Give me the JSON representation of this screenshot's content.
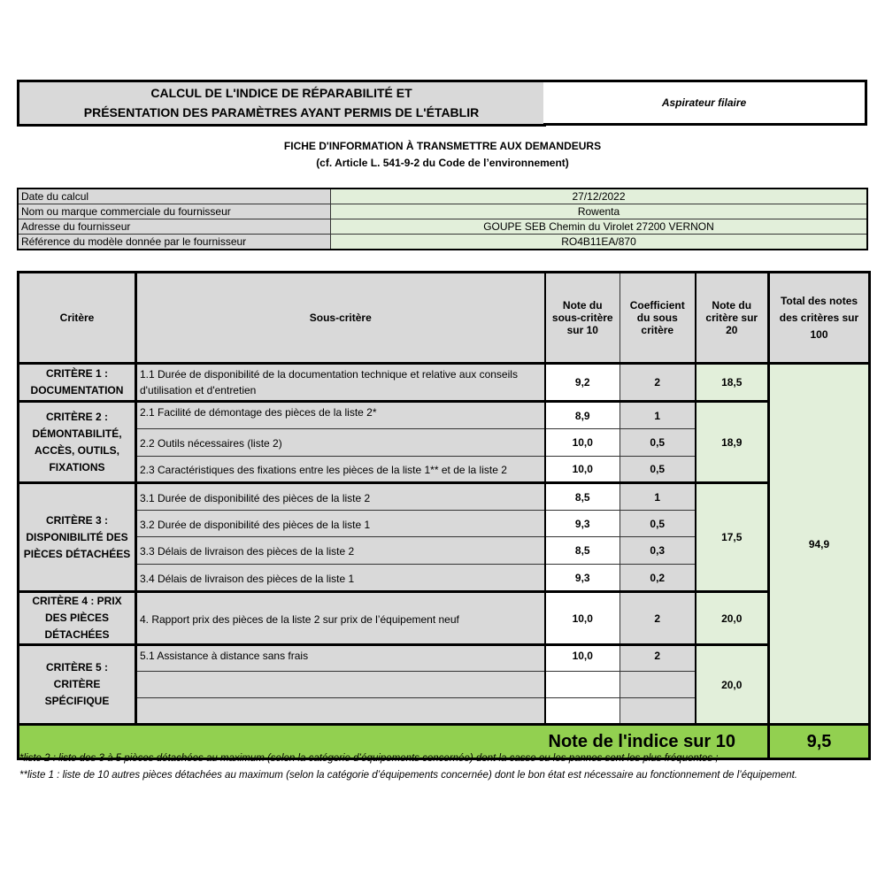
{
  "title": {
    "line1": "CALCUL DE L'INDICE DE RÉPARABILITÉ ET",
    "line2": "PRÉSENTATION DES PARAMÈTRES AYANT PERMIS DE L'ÉTABLIR"
  },
  "product": "Aspirateur filaire",
  "subtitle": {
    "line1": "FICHE D'INFORMATION À TRANSMETTRE AUX DEMANDEURS",
    "line2": "(cf. Article L. 541-9-2 du Code de l’environnement)"
  },
  "info": [
    {
      "label": "Date du calcul",
      "value": "27/12/2022"
    },
    {
      "label": "Nom ou marque commerciale du fournisseur",
      "value": "Rowenta"
    },
    {
      "label": "Adresse du fournisseur",
      "value": "GOUPE SEB Chemin du Virolet 27200 VERNON"
    },
    {
      "label": "Référence du modèle donnée par le fournisseur",
      "value": "RO4B11EA/870"
    }
  ],
  "headers": {
    "critere": "Critère",
    "sous_critere": "Sous-critère",
    "note10": "Note du sous-critère sur 10",
    "coef": "Coefficient du sous critère",
    "note20": "Note du critère sur 20",
    "total": "Total des notes des critères sur 100"
  },
  "criteria": [
    {
      "label": "CRITÈRE 1 : DOCUMENTATION",
      "score20": "18,5",
      "subs": [
        {
          "label": "1.1 Durée de disponibilité de la documentation technique et relative aux conseils d'utilisation et d'entretien",
          "note": "9,2",
          "coef": "2"
        }
      ]
    },
    {
      "label": "CRITÈRE 2 : DÉMONTABILITÉ, ACCÈS, OUTILS, FIXATIONS",
      "score20": "18,9",
      "subs": [
        {
          "label": "2.1 Facilité de démontage des pièces de la liste 2*",
          "note": "8,9",
          "coef": "1"
        },
        {
          "label": "2.2 Outils nécessaires (liste 2)",
          "note": "10,0",
          "coef": "0,5"
        },
        {
          "label": "2.3 Caractéristiques des fixations entre les pièces de la liste 1** et de la liste 2",
          "note": "10,0",
          "coef": "0,5"
        }
      ]
    },
    {
      "label": "CRITÈRE 3 : DISPONIBILITÉ DES PIÈCES DÉTACHÉES",
      "score20": "17,5",
      "subs": [
        {
          "label": "3.1 Durée de disponibilité des pièces de la liste 2",
          "note": "8,5",
          "coef": "1"
        },
        {
          "label": "3.2 Durée de disponibilité des pièces de la liste 1",
          "note": "9,3",
          "coef": "0,5"
        },
        {
          "label": "3.3 Délais de livraison des pièces de la liste 2",
          "note": "8,5",
          "coef": "0,3"
        },
        {
          "label": "3.4 Délais de livraison des pièces de la liste 1",
          "note": "9,3",
          "coef": "0,2"
        }
      ]
    },
    {
      "label": "CRITÈRE 4 : PRIX DES PIÈCES DÉTACHÉES",
      "score20": "20,0",
      "subs": [
        {
          "label": "4. Rapport prix des pièces de la liste 2 sur prix de l’équipement neuf",
          "note": "10,0",
          "coef": "2"
        }
      ]
    },
    {
      "label": "CRITÈRE 5 : CRITÈRE SPÉCIFIQUE",
      "score20": "20,0",
      "subs": [
        {
          "label": "5.1 Assistance à distance sans frais",
          "note": "10,0",
          "coef": "2"
        },
        {
          "label": "",
          "note": "",
          "coef": ""
        },
        {
          "label": "",
          "note": "",
          "coef": ""
        }
      ]
    }
  ],
  "total100": "94,9",
  "final": {
    "label": "Note de l'indice sur 10",
    "value": "9,5"
  },
  "footnotes": [
    "*liste 2 : liste des 3 à 5 pièces détachées au maximum (selon la catégorie d’équipements concernée) dont la casse ou les pannes sont les plus fréquentes ;",
    "**liste 1 : liste de 10 autres pièces détachées au maximum (selon la catégorie d’équipements concernée) dont le bon état est nécessaire au fonctionnement de l’équipement."
  ],
  "colors": {
    "grey": "#d9d9d9",
    "light_green": "#e2efda",
    "green": "#92d050"
  }
}
